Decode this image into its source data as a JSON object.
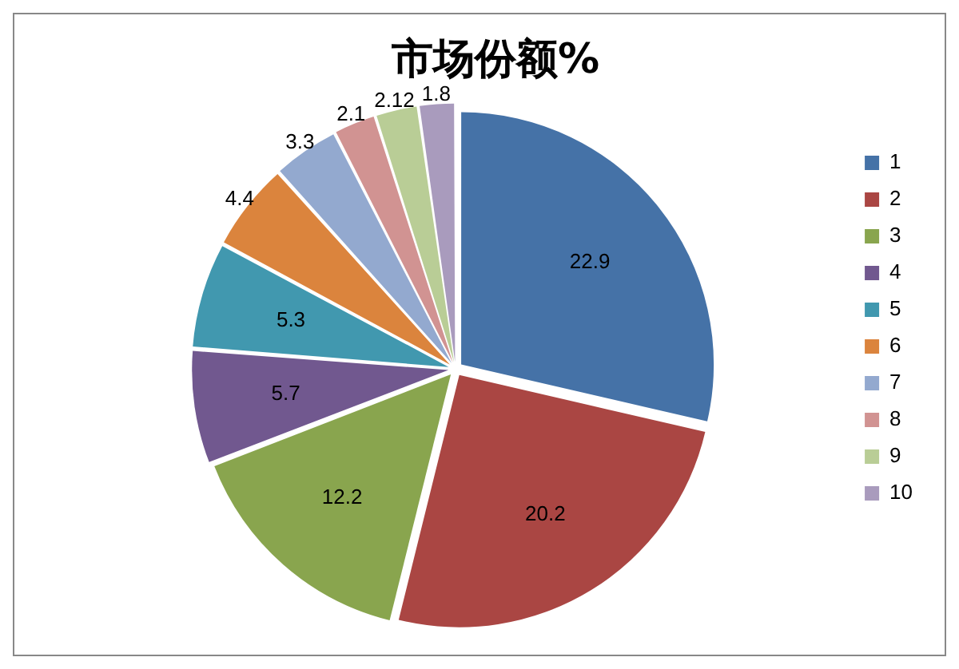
{
  "chart_data": {
    "type": "pie",
    "title": "市场份额%",
    "categories": [
      "1",
      "2",
      "3",
      "4",
      "5",
      "6",
      "7",
      "8",
      "9",
      "10"
    ],
    "values": [
      22.9,
      20.2,
      12.2,
      5.7,
      5.3,
      4.4,
      3.3,
      2.1,
      2.12,
      1.8
    ],
    "colors": [
      "#4572a7",
      "#aa4643",
      "#89a54e",
      "#71588f",
      "#4198af",
      "#db843d",
      "#93a9cf",
      "#d19392",
      "#b9cd96",
      "#a99bbd"
    ],
    "data_labels": true,
    "legend": "right"
  }
}
